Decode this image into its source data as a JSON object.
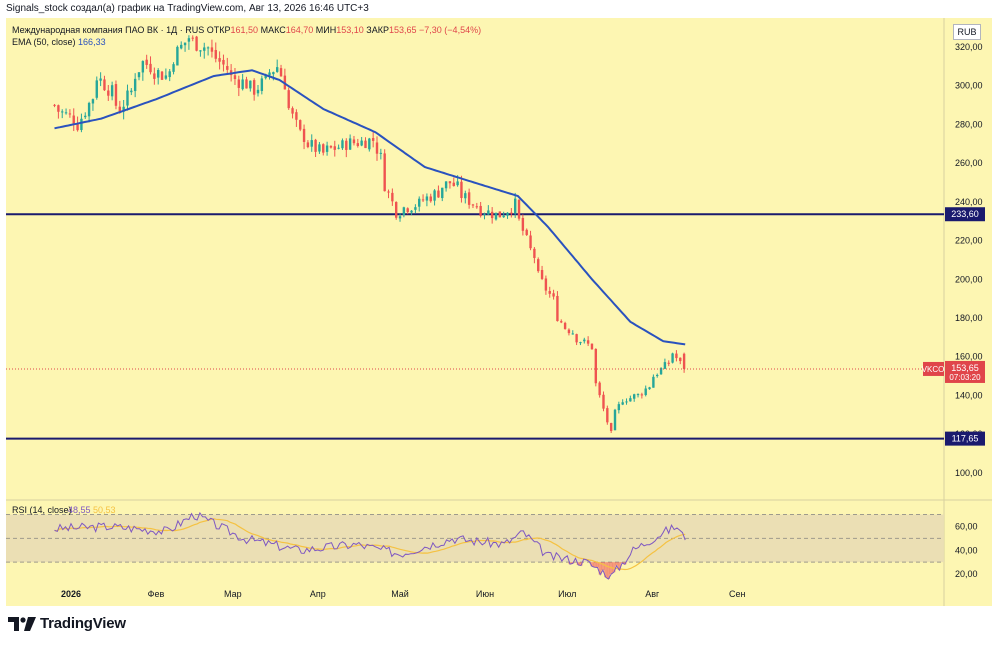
{
  "header": {
    "attribution": "Signals_stock создал(а) график на TradingView.com, Авг 13, 2026 16:46 UTC+3"
  },
  "legend": {
    "symbol": "Международная компания ПАО ВК · 1Д · RUS",
    "open_label": "ОТКР",
    "open_value": "161,50",
    "high_label": "МАКС",
    "high_value": "164,70",
    "low_label": "МИН",
    "low_value": "153,10",
    "close_label": "ЗАКР",
    "close_value": "153,65",
    "change": "−7,30 (−4,54%)",
    "ema_label": "EMA (50, close)",
    "ema_value": "166,33",
    "rsi_label": "RSI (14, close)",
    "rsi_value": "48,55",
    "rsi_ma_value": "50,53"
  },
  "currency": "RUB",
  "logo_text": "TradingView",
  "colors": {
    "background": "#fdf6b2",
    "up": "#26a69a",
    "down": "#ef5350",
    "ema": "#2a52be",
    "hline": "#1a1a6e",
    "rsi": "#7e57c2",
    "rsi_ma": "#f5c242",
    "last_price": "#e0454a"
  },
  "chart_data": {
    "type": "line",
    "series_name": "Международная компания ПАО ВК · 1Д · RUS",
    "price_axis": {
      "ylim": [
        88,
        335
      ],
      "ticks": [
        "100,00",
        "120,00",
        "140,00",
        "160,00",
        "180,00",
        "200,00",
        "220,00",
        "240,00",
        "260,00",
        "280,00",
        "300,00",
        "320,00"
      ]
    },
    "time_axis": {
      "labels": [
        "2026",
        "Фев",
        "Мар",
        "Апр",
        "Май",
        "Июн",
        "Июл",
        "Авг",
        "Сен"
      ]
    },
    "price_anchors": [
      {
        "date": "2025-12-26",
        "close": 290
      },
      {
        "date": "2026-01-05",
        "close": 280
      },
      {
        "date": "2026-01-12",
        "close": 305
      },
      {
        "date": "2026-01-20",
        "close": 288
      },
      {
        "date": "2026-01-28",
        "close": 312
      },
      {
        "date": "2026-02-05",
        "close": 305
      },
      {
        "date": "2026-02-13",
        "close": 325
      },
      {
        "date": "2026-02-22",
        "close": 318
      },
      {
        "date": "2026-03-01",
        "close": 305
      },
      {
        "date": "2026-03-10",
        "close": 298
      },
      {
        "date": "2026-03-18",
        "close": 310
      },
      {
        "date": "2026-03-26",
        "close": 275
      },
      {
        "date": "2026-04-03",
        "close": 265
      },
      {
        "date": "2026-04-12",
        "close": 270
      },
      {
        "date": "2026-04-22",
        "close": 272
      },
      {
        "date": "2026-04-30",
        "close": 235
      },
      {
        "date": "2026-05-10",
        "close": 240
      },
      {
        "date": "2026-05-20",
        "close": 250
      },
      {
        "date": "2026-05-29",
        "close": 238
      },
      {
        "date": "2026-06-07",
        "close": 232
      },
      {
        "date": "2026-06-13",
        "close": 240
      },
      {
        "date": "2026-06-18",
        "close": 215
      },
      {
        "date": "2026-06-24",
        "close": 195
      },
      {
        "date": "2026-07-01",
        "close": 175
      },
      {
        "date": "2026-07-10",
        "close": 165
      },
      {
        "date": "2026-07-17",
        "close": 120
      },
      {
        "date": "2026-07-22",
        "close": 138
      },
      {
        "date": "2026-07-28",
        "close": 140
      },
      {
        "date": "2026-08-03",
        "close": 150
      },
      {
        "date": "2026-08-10",
        "close": 162
      },
      {
        "date": "2026-08-13",
        "close": 153.65
      }
    ],
    "ema_anchors": [
      {
        "date": "2025-12-26",
        "value": 278
      },
      {
        "date": "2026-01-12",
        "value": 283
      },
      {
        "date": "2026-02-01",
        "value": 293
      },
      {
        "date": "2026-02-22",
        "value": 305
      },
      {
        "date": "2026-03-08",
        "value": 308
      },
      {
        "date": "2026-03-18",
        "value": 303
      },
      {
        "date": "2026-04-03",
        "value": 288
      },
      {
        "date": "2026-04-22",
        "value": 276
      },
      {
        "date": "2026-05-10",
        "value": 258
      },
      {
        "date": "2026-05-28",
        "value": 250
      },
      {
        "date": "2026-06-13",
        "value": 243
      },
      {
        "date": "2026-06-24",
        "value": 227
      },
      {
        "date": "2026-07-10",
        "value": 200
      },
      {
        "date": "2026-07-24",
        "value": 178
      },
      {
        "date": "2026-08-05",
        "value": 168
      },
      {
        "date": "2026-08-13",
        "value": 166.33
      }
    ],
    "horizontal_lines": [
      {
        "price": 233.6,
        "label": "233,60"
      },
      {
        "price": 117.65,
        "label": "117,65"
      }
    ],
    "last_price": {
      "symbol": "VKCO",
      "price": 153.65,
      "label": "153,65",
      "countdown": "07:03:20"
    },
    "rsi": {
      "ylim": [
        10,
        78
      ],
      "ticks": [
        "20,00",
        "40,00",
        "60,00"
      ],
      "band": [
        30,
        70
      ],
      "anchors": [
        {
          "date": "2025-12-26",
          "value": 58
        },
        {
          "date": "2026-01-15",
          "value": 60
        },
        {
          "date": "2026-02-05",
          "value": 56
        },
        {
          "date": "2026-02-15",
          "value": 70
        },
        {
          "date": "2026-03-05",
          "value": 50
        },
        {
          "date": "2026-03-25",
          "value": 40
        },
        {
          "date": "2026-04-15",
          "value": 45
        },
        {
          "date": "2026-05-01",
          "value": 37
        },
        {
          "date": "2026-05-20",
          "value": 50
        },
        {
          "date": "2026-06-08",
          "value": 45
        },
        {
          "date": "2026-06-15",
          "value": 55
        },
        {
          "date": "2026-06-24",
          "value": 35
        },
        {
          "date": "2026-07-08",
          "value": 30
        },
        {
          "date": "2026-07-17",
          "value": 18
        },
        {
          "date": "2026-07-25",
          "value": 40
        },
        {
          "date": "2026-08-05",
          "value": 55
        },
        {
          "date": "2026-08-10",
          "value": 60
        },
        {
          "date": "2026-08-13",
          "value": 48.55
        }
      ]
    }
  }
}
